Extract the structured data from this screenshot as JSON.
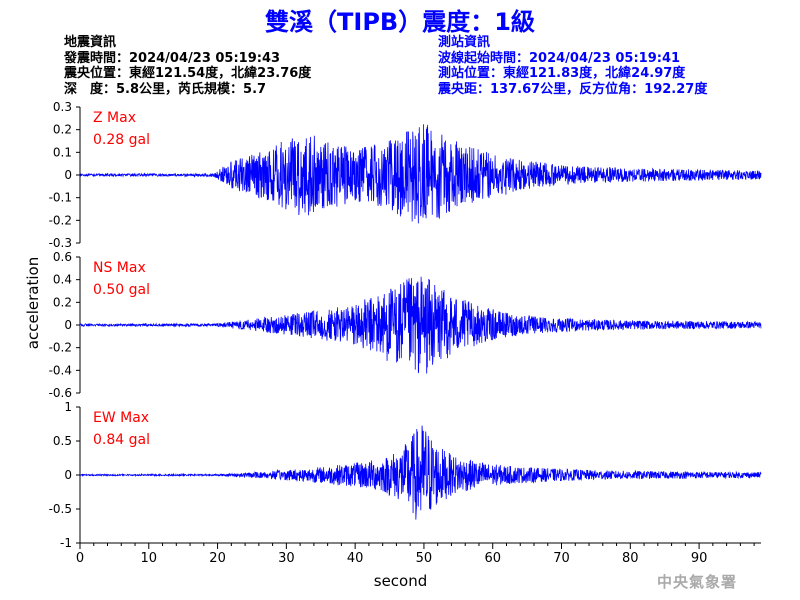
{
  "title": "雙溪（TIPB）震度：1級",
  "earthquake_info": {
    "header": "地震資訊",
    "time": "發震時間：2024/04/23 05:19:43",
    "epicenter": "震央位置：東經121.54度，北緯23.76度",
    "depth_magnitude": "深　度：5.8公里，芮氏規模：5.7"
  },
  "station_info": {
    "header": "測站資訊",
    "wave_start": "波線起始時間：2024/04/23 05:19:41",
    "location": "測站位置：東經121.83度，北緯24.97度",
    "distance_azimuth": "震央距：137.67公里，反方位角：192.27度"
  },
  "watermark": "中央氣象署",
  "colors": {
    "trace": "#0000ff",
    "label": "#ff0000",
    "title": "#0000ff"
  },
  "chart_data": {
    "type": "line",
    "xlabel": "second",
    "ylabel": "acceleration",
    "xlim": [
      0,
      99
    ],
    "x_ticks": [
      0,
      10,
      20,
      30,
      40,
      50,
      60,
      70,
      80,
      90
    ],
    "series": [
      {
        "name": "Z Max",
        "max_label": "0.28 gal",
        "ylim": [
          -0.3,
          0.3
        ],
        "y_ticks": [
          -0.3,
          -0.2,
          -0.1,
          0,
          0.1,
          0.2,
          0.3
        ],
        "y_tick_labels": [
          "-0.3",
          "-0.2",
          "-0.1",
          "0",
          "0.1",
          "0.2",
          "0.3"
        ],
        "envelope_t": [
          0,
          19,
          20,
          22,
          25,
          28,
          30,
          33,
          36,
          40,
          44,
          47,
          50,
          53,
          56,
          60,
          63,
          66,
          70,
          75,
          80,
          90,
          99
        ],
        "envelope_amp": [
          0.005,
          0.006,
          0.02,
          0.06,
          0.09,
          0.12,
          0.17,
          0.19,
          0.15,
          0.12,
          0.14,
          0.19,
          0.24,
          0.18,
          0.13,
          0.1,
          0.08,
          0.06,
          0.045,
          0.035,
          0.03,
          0.025,
          0.02
        ]
      },
      {
        "name": "NS Max",
        "max_label": "0.50 gal",
        "ylim": [
          -0.6,
          0.6
        ],
        "y_ticks": [
          -0.6,
          -0.4,
          -0.2,
          0,
          0.2,
          0.4,
          0.6
        ],
        "y_tick_labels": [
          "-0.6",
          "-0.4",
          "-0.2",
          "0",
          "0.2",
          "0.4",
          "0.6"
        ],
        "envelope_t": [
          0,
          20,
          22,
          26,
          30,
          34,
          38,
          42,
          45,
          48,
          50,
          52,
          55,
          58,
          62,
          66,
          70,
          75,
          80,
          90,
          99
        ],
        "envelope_amp": [
          0.01,
          0.012,
          0.03,
          0.06,
          0.09,
          0.13,
          0.16,
          0.24,
          0.33,
          0.42,
          0.46,
          0.34,
          0.25,
          0.17,
          0.11,
          0.08,
          0.06,
          0.05,
          0.04,
          0.035,
          0.03
        ]
      },
      {
        "name": "EW Max",
        "max_label": "0.84 gal",
        "ylim": [
          -1,
          1
        ],
        "y_ticks": [
          -1,
          -0.5,
          0,
          0.5,
          1
        ],
        "y_tick_labels": [
          "-1",
          "-0.5",
          "0",
          "0.5",
          "1"
        ],
        "envelope_t": [
          0,
          20,
          25,
          30,
          35,
          40,
          44,
          47,
          49,
          50,
          51,
          52,
          54,
          57,
          60,
          64,
          70,
          75,
          80,
          90,
          99
        ],
        "envelope_amp": [
          0.01,
          0.012,
          0.04,
          0.08,
          0.12,
          0.18,
          0.25,
          0.42,
          0.7,
          0.8,
          0.58,
          0.45,
          0.3,
          0.22,
          0.16,
          0.12,
          0.09,
          0.07,
          0.06,
          0.05,
          0.04
        ]
      }
    ]
  }
}
